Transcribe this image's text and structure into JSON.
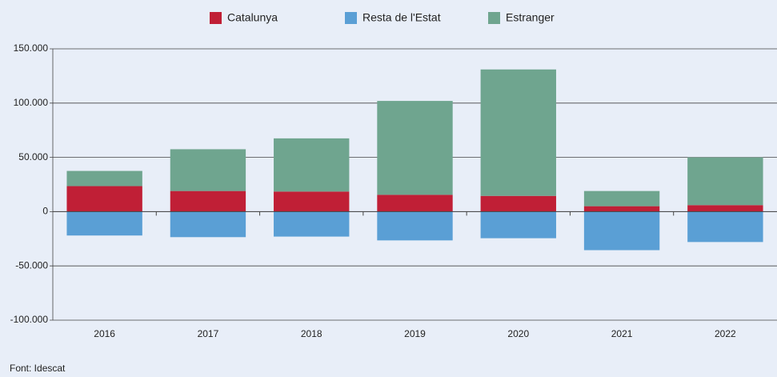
{
  "chart_data": {
    "type": "bar",
    "stacked": true,
    "categories": [
      "2016",
      "2017",
      "2018",
      "2019",
      "2020",
      "2021",
      "2022"
    ],
    "series": [
      {
        "name": "Catalunya",
        "color": "#c01f36",
        "values": [
          23500,
          19000,
          18500,
          15500,
          14500,
          5000,
          6000
        ]
      },
      {
        "name": "Resta de l'Estat",
        "color": "#5a9fd5",
        "values": [
          -22000,
          -23500,
          -23000,
          -26500,
          -24500,
          -35500,
          -28000
        ]
      },
      {
        "name": "Estranger",
        "color": "#6fa58f",
        "values": [
          14000,
          38500,
          49000,
          86500,
          116500,
          14000,
          44000
        ]
      }
    ],
    "ylim": [
      -100000,
      150000
    ],
    "yticks": [
      {
        "value": -100000,
        "label": "-100.000"
      },
      {
        "value": -50000,
        "label": "-50.000"
      },
      0,
      {
        "value": 50000,
        "label": "50.000"
      },
      {
        "value": 100000,
        "label": "100.000"
      },
      {
        "value": 150000,
        "label": "150.000"
      }
    ],
    "grid": true,
    "legend": "top",
    "source": "Font: Idescat"
  }
}
